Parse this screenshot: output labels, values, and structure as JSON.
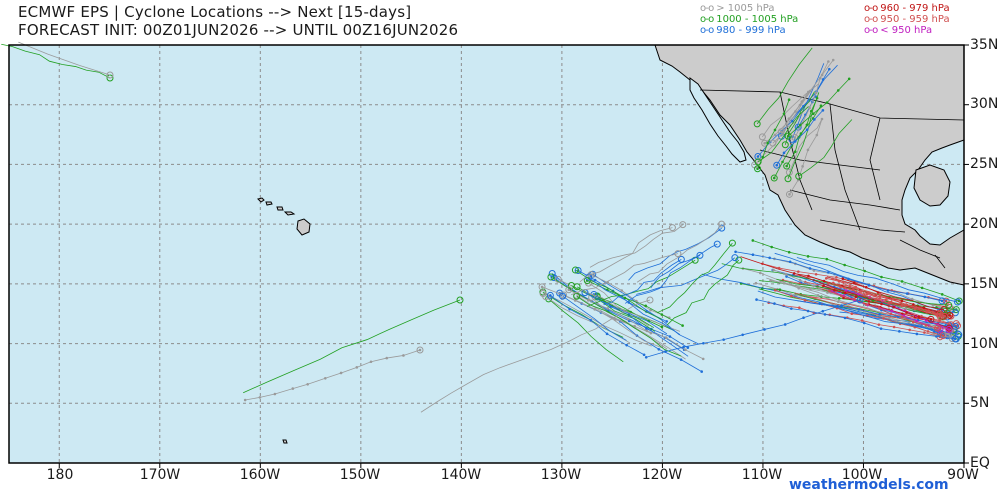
{
  "header": {
    "title_line1": "ECMWF EPS | Cyclone Locations --> Next [15-days]",
    "title_line2": "FORECAST INIT: 00Z01JUN2026 --> UNTIL 00Z16JUN2026"
  },
  "legend": [
    {
      "marker": "o-o",
      "label": "> 1005 hPa",
      "color": "#9a9a9a"
    },
    {
      "marker": "o-o",
      "label": "1000 - 1005 hPa",
      "color": "#22a022"
    },
    {
      "marker": "o-o",
      "label": "980 - 999 hPa",
      "color": "#1f6fd8"
    },
    {
      "marker": "o-o",
      "label": "960 - 979 hPa",
      "color": "#c01515"
    },
    {
      "marker": "o-o",
      "label": "950 - 959 hPa",
      "color": "#d05050"
    },
    {
      "marker": "o-o",
      "label": "< 950 hPa",
      "color": "#c020c0"
    }
  ],
  "axes": {
    "latitude_labels": [
      "35N",
      "30N",
      "25N",
      "20N",
      "15N",
      "10N",
      "5N",
      "EQ"
    ],
    "longitude_labels": [
      "180",
      "170W",
      "160W",
      "150W",
      "140W",
      "130W",
      "120W",
      "110W",
      "100W",
      "90W"
    ]
  },
  "map": {
    "ocean_color": "#cde9f3",
    "land_color": "#cccccc",
    "grid": true,
    "lat_range": [
      0,
      35
    ],
    "lon_range": [
      -185,
      -90
    ]
  },
  "credit": "weathermodels.com"
}
